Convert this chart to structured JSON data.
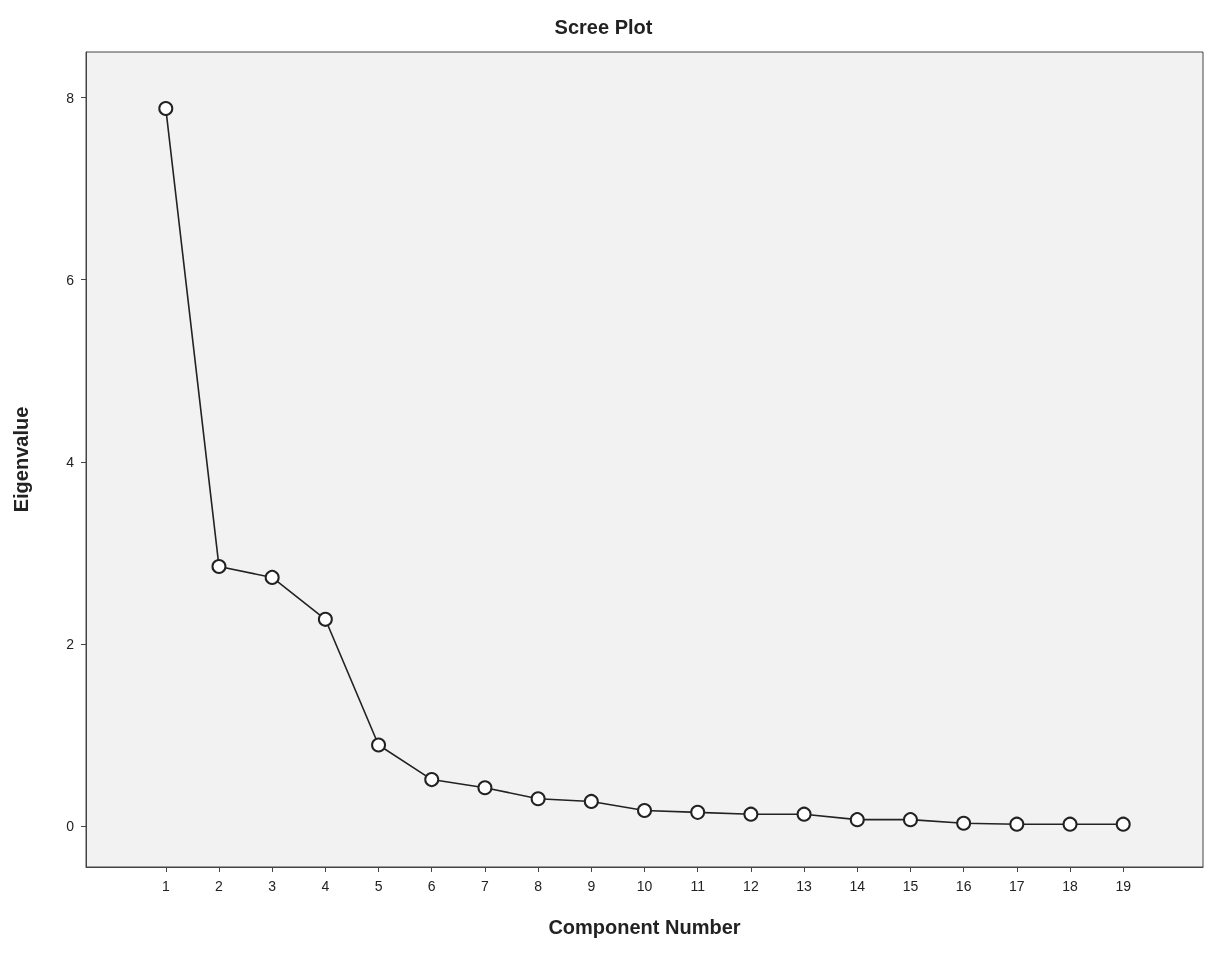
{
  "chart_data": {
    "type": "line",
    "title": "Scree Plot",
    "xlabel": "Component Number",
    "ylabel": "Eigenvalue",
    "x": [
      1,
      2,
      3,
      4,
      5,
      6,
      7,
      8,
      9,
      10,
      11,
      12,
      13,
      14,
      15,
      16,
      17,
      18,
      19
    ],
    "series": [
      {
        "color": "#222222",
        "values": [
          7.88,
          2.85,
          2.73,
          2.27,
          0.89,
          0.51,
          0.42,
          0.3,
          0.27,
          0.17,
          0.15,
          0.13,
          0.13,
          0.07,
          0.07,
          0.03,
          0.02,
          0.02,
          0.02
        ]
      }
    ],
    "xlim": [
      -0.5,
      20.5
    ],
    "xticks": [
      1,
      2,
      3,
      4,
      5,
      6,
      7,
      8,
      9,
      10,
      11,
      12,
      13,
      14,
      15,
      16,
      17,
      18,
      19
    ],
    "ylim": [
      -0.45,
      8.5
    ],
    "yticks": [
      0,
      2,
      4,
      6,
      8
    ],
    "grid": false,
    "marker": "circle",
    "line_style": "solid"
  }
}
